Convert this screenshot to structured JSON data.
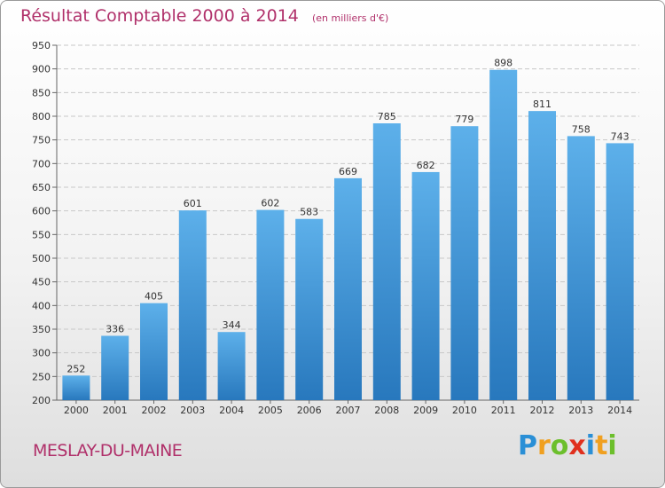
{
  "header": {
    "title": "Résultat Comptable 2000 à 2014",
    "subtitle": "(en milliers d'€)"
  },
  "footer": {
    "place": "MESLAY-DU-MAINE",
    "logo_letters": [
      {
        "ch": "P",
        "color": "#2a8fd6"
      },
      {
        "ch": "r",
        "color": "#f0a020"
      },
      {
        "ch": "o",
        "color": "#6cbf2c"
      },
      {
        "ch": "x",
        "color": "#e0301e"
      },
      {
        "ch": "i",
        "color": "#2a8fd6"
      },
      {
        "ch": "t",
        "color": "#f0a020"
      },
      {
        "ch": "i",
        "color": "#6cbf2c"
      }
    ]
  },
  "chart_data": {
    "type": "bar",
    "title": "Résultat Comptable 2000 à 2014",
    "subtitle": "(en milliers d'€)",
    "categories": [
      "2000",
      "2001",
      "2002",
      "2003",
      "2004",
      "2005",
      "2006",
      "2007",
      "2008",
      "2009",
      "2010",
      "2011",
      "2012",
      "2013",
      "2014"
    ],
    "values": [
      252,
      336,
      405,
      601,
      344,
      602,
      583,
      669,
      785,
      682,
      779,
      898,
      811,
      758,
      743
    ],
    "ylim": [
      200,
      950
    ],
    "yticks": [
      200,
      250,
      300,
      350,
      400,
      450,
      500,
      550,
      600,
      650,
      700,
      750,
      800,
      850,
      900,
      950
    ],
    "grid": true,
    "bar_color": "#3a97dc",
    "data_labels": true
  }
}
